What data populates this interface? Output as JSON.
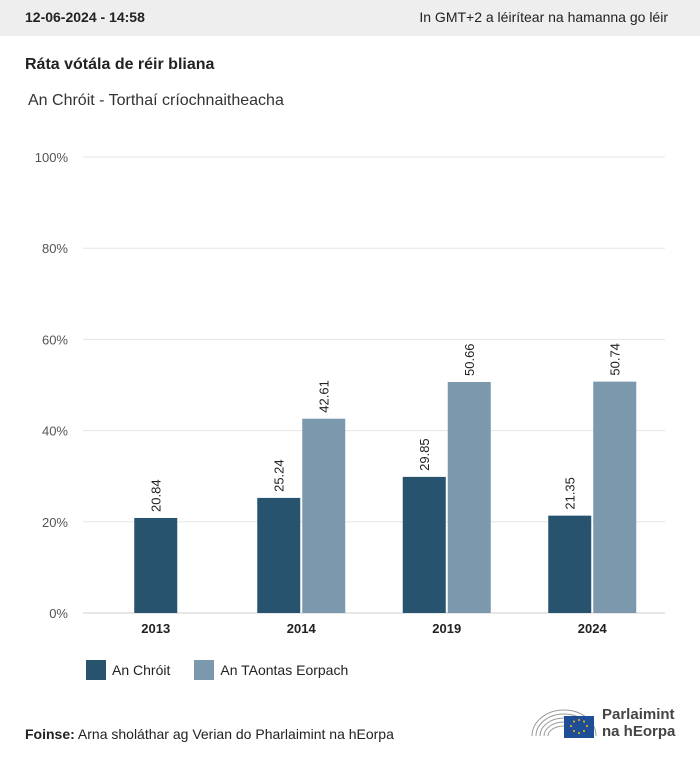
{
  "header": {
    "timestamp": "12-06-2024 - 14:58",
    "timezone_note": "In GMT+2 a léirítear na hamanna go léir"
  },
  "title": "Ráta vótála de réir bliana",
  "subtitle": "An Chróit - Torthaí críochnaitheacha",
  "chart_data": {
    "type": "bar",
    "categories": [
      "2013",
      "2014",
      "2019",
      "2024"
    ],
    "series": [
      {
        "name": "An Chróit",
        "color": "#27536f",
        "values": [
          20.84,
          25.24,
          29.85,
          21.35
        ]
      },
      {
        "name": "An TAontas Eorpach",
        "color": "#7b98ad",
        "values": [
          null,
          42.61,
          50.66,
          50.74
        ]
      }
    ],
    "yticks": [
      "0%",
      "20%",
      "40%",
      "60%",
      "80%",
      "100%"
    ],
    "ylim": [
      0,
      100
    ],
    "grid": true,
    "legend": "bottom-left"
  },
  "source": {
    "label": "Foinse:",
    "text": "Arna sholáthar ag Verian do Pharlaimint na hEorpa"
  },
  "logo": {
    "line1": "Parlaimint",
    "line2": "na hEorpa",
    "icon": "eu-parliament-hemicycle-icon"
  }
}
